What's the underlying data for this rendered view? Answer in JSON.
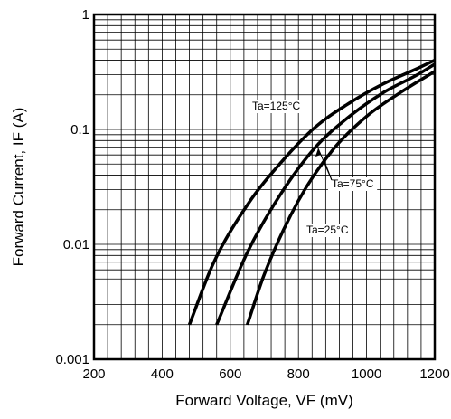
{
  "chart_data": {
    "type": "line",
    "xlabel": "Forward Voltage, VF (mV)",
    "ylabel": "Forward Current, IF (A)",
    "xlim": [
      200,
      1200
    ],
    "ylim": [
      0.001,
      1
    ],
    "yscale": "log",
    "grid": true,
    "x_ticks": [
      {
        "value": 200,
        "label": "200"
      },
      {
        "value": 400,
        "label": "400"
      },
      {
        "value": 600,
        "label": "600"
      },
      {
        "value": 800,
        "label": "800"
      },
      {
        "value": 1000,
        "label": "1000"
      },
      {
        "value": 1200,
        "label": "1200"
      }
    ],
    "y_ticks": [
      {
        "value": 0.001,
        "label": "0.001"
      },
      {
        "value": 0.01,
        "label": "0.01"
      },
      {
        "value": 0.1,
        "label": "0.1"
      },
      {
        "value": 1,
        "label": "1"
      }
    ],
    "series": [
      {
        "name": "Ta=125°C",
        "x": [
          480,
          550,
          650,
          750,
          850,
          950,
          1050,
          1150,
          1200
        ],
        "y": [
          0.002,
          0.0068,
          0.022,
          0.052,
          0.105,
          0.17,
          0.25,
          0.34,
          0.4
        ]
      },
      {
        "name": "Ta=75°C",
        "x": [
          560,
          650,
          750,
          850,
          950,
          1050,
          1150,
          1200
        ],
        "y": [
          0.002,
          0.0085,
          0.028,
          0.07,
          0.13,
          0.21,
          0.3,
          0.37
        ]
      },
      {
        "name": "Ta=25°C",
        "x": [
          650,
          700,
          800,
          900,
          1000,
          1100,
          1200
        ],
        "y": [
          0.002,
          0.0055,
          0.024,
          0.066,
          0.13,
          0.21,
          0.32
        ]
      }
    ]
  }
}
